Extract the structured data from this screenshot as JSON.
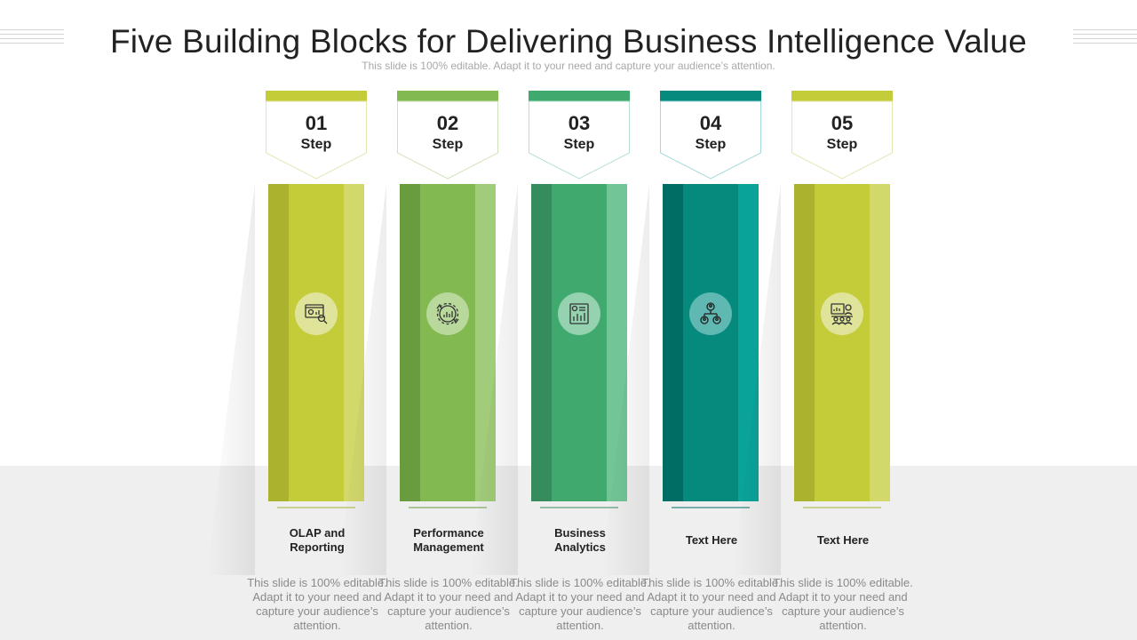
{
  "title": "Five Building Blocks for Delivering Business Intelligence Value",
  "subtitle": "This slide is 100% editable. Adapt it to your need and capture your audience’s attention.",
  "steps": [
    {
      "number": "01",
      "word": "Step",
      "label": "OLAP and\nReporting",
      "desc": "This slide is 100% editable. Adapt it to your need and capture your audience’s attention.",
      "icon": "dashboard-search-icon",
      "colors": {
        "tag": "#c5cc3a",
        "outline": "#e3e6b3",
        "dark": "#aab22e",
        "mid": "#c5cc3a",
        "light": "#d2d86a",
        "circle": "#e0e49a"
      }
    },
    {
      "number": "02",
      "word": "Step",
      "label": "Performance\nManagement",
      "desc": "This slide is 100% editable. Adapt it to your need and capture your audience’s attention.",
      "icon": "performance-gear-icon",
      "colors": {
        "tag": "#82b951",
        "outline": "#cfe3bb",
        "dark": "#689c3f",
        "mid": "#82b951",
        "light": "#a1cc7a",
        "circle": "#b9d99c"
      }
    },
    {
      "number": "03",
      "word": "Step",
      "label": "Business\nAnalytics",
      "desc": "This slide is 100% editable. Adapt it to your need and capture your audience’s attention.",
      "icon": "analytics-report-icon",
      "colors": {
        "tag": "#40a96e",
        "outline": "#b5e0d3",
        "dark": "#368c5c",
        "mid": "#40a96e",
        "light": "#72c597",
        "circle": "#95d2b0"
      }
    },
    {
      "number": "04",
      "word": "Step",
      "label": "Text Here",
      "desc": "This slide is 100% editable. Adapt it to your need and capture your audience’s attention.",
      "icon": "org-hierarchy-icon",
      "colors": {
        "tag": "#078a7e",
        "outline": "#a3dada",
        "dark": "#006d64",
        "mid": "#078a7e",
        "light": "#0aa39a",
        "circle": "#5fb8b1"
      }
    },
    {
      "number": "05",
      "word": "Step",
      "label": "Text Here",
      "desc": "This slide is 100% editable. Adapt it to your need and capture your audience’s attention.",
      "icon": "presentation-meeting-icon",
      "colors": {
        "tag": "#c5cc3a",
        "outline": "#e3e6b3",
        "dark": "#aab22e",
        "mid": "#c5cc3a",
        "light": "#d2d86a",
        "circle": "#e0e49a"
      }
    }
  ]
}
